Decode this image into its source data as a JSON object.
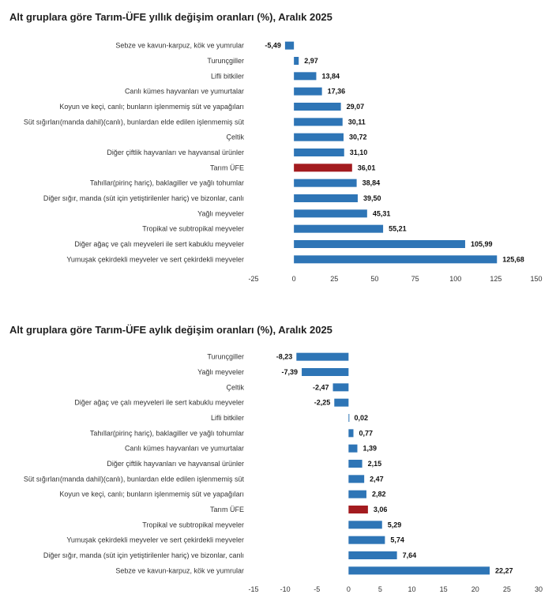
{
  "chart_data": [
    {
      "type": "bar",
      "orientation": "horizontal",
      "title": "Alt gruplara göre Tarım-ÜFE yıllık değişim oranları (%), Aralık 2025",
      "categories": [
        "Sebze ve kavun-karpuz, kök ve yumrular",
        "Turunçgiller",
        "Lifli bitkiler",
        "Canlı kümes hayvanları ve yumurtalar",
        "Koyun ve keçi, canlı; bunların işlenmemiş süt ve yapağıları",
        "Süt sığırları(manda dahil)(canlı), bunlardan elde edilen işlenmemiş süt",
        "Çeltik",
        "Diğer çiftlik hayvanları ve hayvansal ürünler",
        "Tarım ÜFE",
        "Tahıllar(pirinç hariç), baklagiller ve yağlı tohumlar",
        "Diğer sığır, manda (süt için yetiştirilenler hariç) ve bizonlar, canlı",
        "Yağlı meyveler",
        "Tropikal ve subtropikal meyveler",
        "Diğer ağaç ve çalı meyveleri ile sert kabuklu meyveler",
        "Yumuşak çekirdekli meyveler ve sert çekirdekli meyveler"
      ],
      "values": [
        -5.49,
        2.97,
        13.84,
        17.36,
        29.07,
        30.11,
        30.72,
        31.1,
        36.01,
        38.84,
        39.5,
        45.31,
        55.21,
        105.99,
        125.68
      ],
      "value_labels": [
        "-5,49",
        "2,97",
        "13,84",
        "17,36",
        "29,07",
        "30,11",
        "30,72",
        "31,10",
        "36,01",
        "38,84",
        "39,50",
        "45,31",
        "55,21",
        "105,99",
        "125,68"
      ],
      "highlight": "Tarım ÜFE",
      "xlim": [
        -25,
        150
      ],
      "xticks": [
        -25,
        0,
        25,
        50,
        75,
        100,
        125,
        150
      ],
      "xtick_labels": [
        "-25",
        "0",
        "25",
        "50",
        "75",
        "100",
        "125",
        "150"
      ],
      "grid": false,
      "colors": {
        "bar": "#2e75b6",
        "highlight": "#a31b1f"
      }
    },
    {
      "type": "bar",
      "orientation": "horizontal",
      "title": "Alt gruplara göre Tarım-ÜFE aylık değişim oranları (%), Aralık 2025",
      "categories": [
        "Turunçgiller",
        "Yağlı meyveler",
        "Çeltik",
        "Diğer ağaç ve çalı meyveleri ile sert kabuklu meyveler",
        "Lifli bitkiler",
        "Tahıllar(pirinç hariç), baklagiller ve yağlı tohumlar",
        "Canlı kümes hayvanları ve yumurtalar",
        "Diğer çiftlik hayvanları ve hayvansal ürünler",
        "Süt sığırları(manda dahil)(canlı), bunlardan elde edilen işlenmemiş süt",
        "Koyun ve keçi, canlı; bunların işlenmemiş süt ve yapağıları",
        "Tarım ÜFE",
        "Tropikal ve subtropikal meyveler",
        "Yumuşak çekirdekli meyveler ve sert çekirdekli meyveler",
        "Diğer sığır, manda (süt için yetiştirilenler hariç) ve bizonlar, canlı",
        "Sebze ve kavun-karpuz, kök ve yumrular"
      ],
      "values": [
        -8.23,
        -7.39,
        -2.47,
        -2.25,
        0.02,
        0.77,
        1.39,
        2.15,
        2.47,
        2.82,
        3.06,
        5.29,
        5.74,
        7.64,
        22.27
      ],
      "value_labels": [
        "-8,23",
        "-7,39",
        "-2,47",
        "-2,25",
        "0,02",
        "0,77",
        "1,39",
        "2,15",
        "2,47",
        "2,82",
        "3,06",
        "5,29",
        "5,74",
        "7,64",
        "22,27"
      ],
      "highlight": "Tarım ÜFE",
      "xlim": [
        -15,
        30
      ],
      "xticks": [
        -15,
        -10,
        -5,
        0,
        5,
        10,
        15,
        20,
        25,
        30
      ],
      "xtick_labels": [
        "-15",
        "-10",
        "-5",
        "0",
        "5",
        "10",
        "15",
        "20",
        "25",
        "30"
      ],
      "grid": false,
      "colors": {
        "bar": "#2e75b6",
        "highlight": "#a31b1f"
      }
    }
  ]
}
